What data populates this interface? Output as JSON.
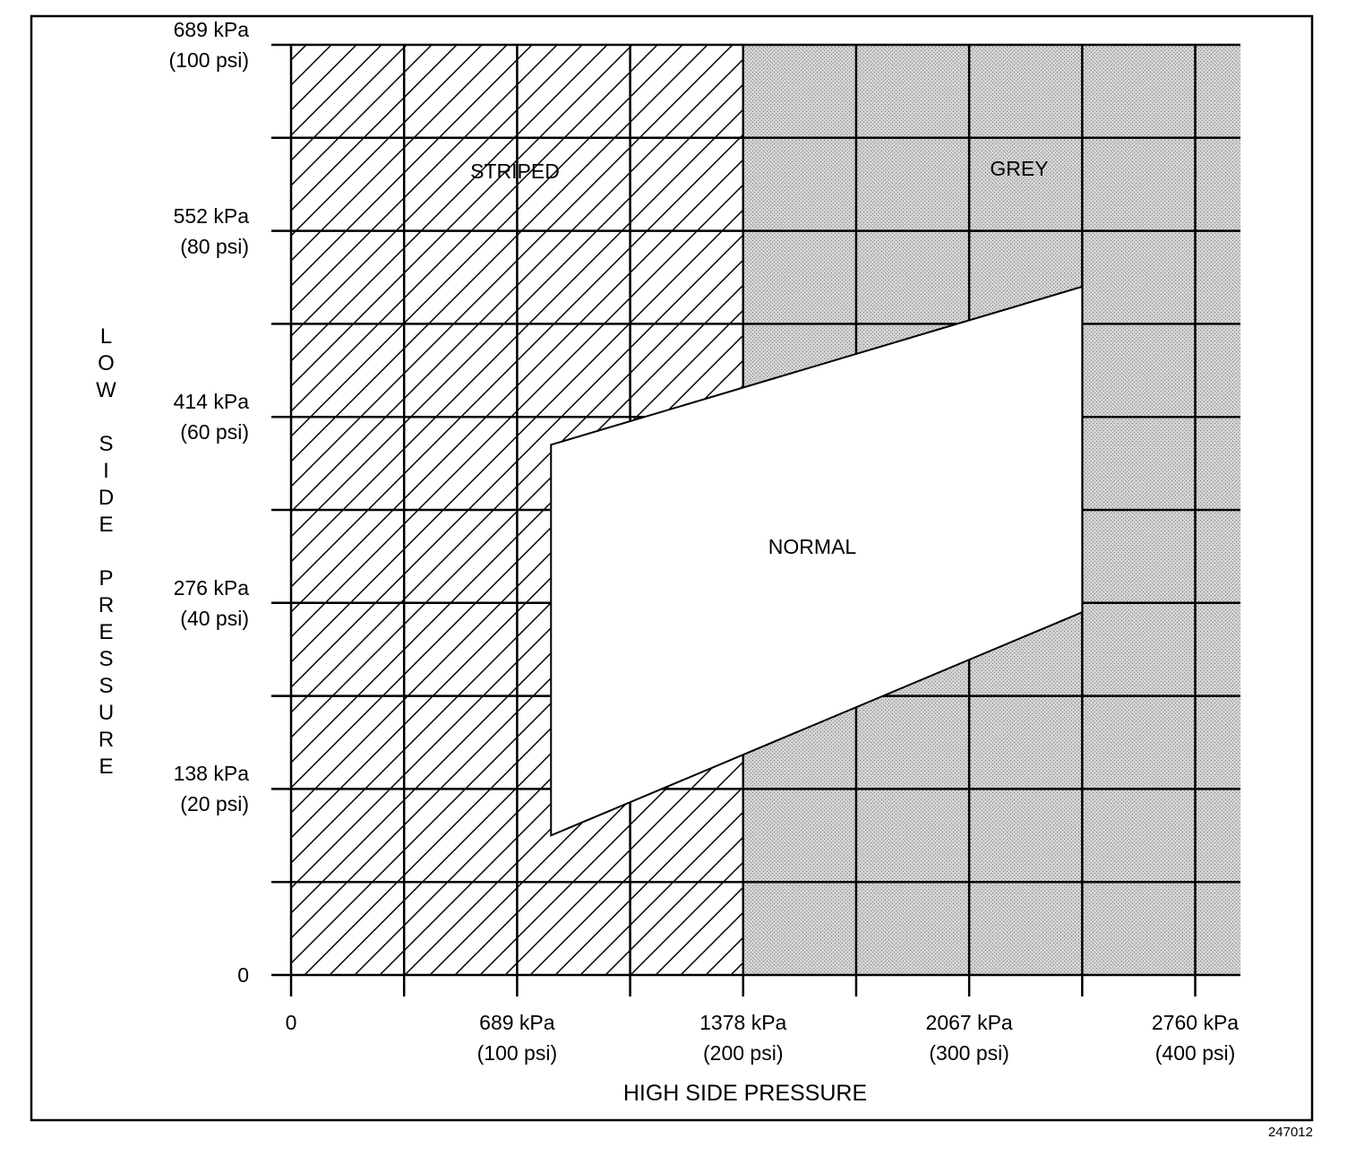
{
  "chart_data": {
    "type": "region",
    "x_label": "HIGH SIDE PRESSURE",
    "y_label": "LOW SIDE PRESSURE",
    "figure_id": "247012",
    "xlim": [
      0,
      420
    ],
    "ylim": [
      0,
      100
    ],
    "xticks": [
      0,
      {
        "value": 100,
        "label": "689 kPa\n(100 psi)"
      },
      {
        "value": 200,
        "label": "1378 kPa\n(200 psi)"
      },
      {
        "value": 300,
        "label": "2067 kPa\n(300 psi)"
      },
      {
        "value": 400,
        "label": "2760 kPa\n(400 psi)"
      }
    ],
    "yticks": [
      0,
      {
        "value": 20,
        "label": "138 kPa\n(20 psi)"
      },
      {
        "value": 40,
        "label": "276 kPa\n(40 psi)"
      },
      {
        "value": 60,
        "label": "414 kPa\n(60 psi)"
      },
      {
        "value": 80,
        "label": "552 kPa\n(80 psi)"
      },
      {
        "value": 100,
        "label": "689 kPa\n(100 psi)"
      }
    ],
    "xgrid": [
      50,
      150,
      250,
      350
    ],
    "ygrid": [
      10,
      30,
      50,
      70,
      90
    ],
    "grid": true,
    "regions": [
      {
        "name": "STRIPED",
        "fill": "hatch",
        "points": [
          [
            0,
            0
          ],
          [
            0,
            100
          ],
          [
            200,
            100
          ],
          [
            200,
            0
          ]
        ]
      },
      {
        "name": "GREY",
        "fill": "#c4c4c4",
        "points": [
          [
            200,
            0
          ],
          [
            200,
            100
          ],
          [
            420,
            100
          ],
          [
            420,
            0
          ]
        ]
      },
      {
        "name": "NORMAL",
        "fill": "#ffffff",
        "points": [
          [
            115,
            57
          ],
          [
            350,
            74
          ],
          [
            350,
            39
          ],
          [
            115,
            15
          ]
        ]
      }
    ]
  }
}
